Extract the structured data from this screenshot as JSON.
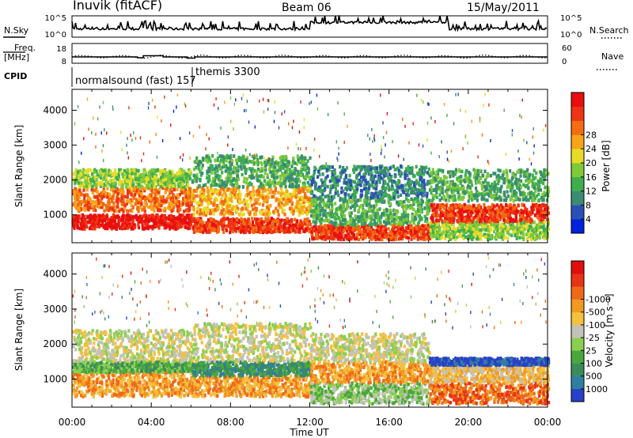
{
  "header": {
    "station": "Inuvik (fitACF)",
    "beam": "Beam 06",
    "date": "15/May/2011"
  },
  "side_labels": {
    "nsky": "N.Sky",
    "nsearch": "N.Search",
    "freq_line1": "Freq.",
    "freq_line2": "[MHz]",
    "cpid": "CPID",
    "nave": "Nave"
  },
  "chart_data": [
    {
      "type": "line",
      "name": "noise",
      "left_axis": {
        "ticks": [
          "10^5",
          "10^0"
        ]
      },
      "right_axis": {
        "ticks": [
          "10^5",
          "10^0"
        ]
      },
      "series": [
        {
          "name": "N.Sky",
          "style": "solid black, dense high variability"
        },
        {
          "name": "N.Search",
          "style": "dotted"
        }
      ]
    },
    {
      "type": "line",
      "name": "frequency_nave",
      "left_axis": {
        "ticks": [
          "18",
          "8"
        ]
      },
      "right_axis": {
        "ticks": [
          "60",
          "0"
        ]
      },
      "series": [
        {
          "name": "Freq.",
          "x": [
            0,
            1.5,
            3.3,
            3.6,
            4.6,
            5.8,
            6.2,
            24
          ],
          "values": [
            11.2,
            11.2,
            10.8,
            11.8,
            11.2,
            10.6,
            11.2,
            11.2
          ]
        },
        {
          "name": "Nave",
          "style": "dotted",
          "values_range": [
            16,
            26
          ]
        }
      ]
    },
    {
      "type": "table",
      "name": "cpid",
      "segments": [
        {
          "label": "normalsound (fast) 157",
          "start_hour": 0,
          "end_hour": 6.1
        },
        {
          "label": "themis 3300",
          "start_hour": 6.1,
          "end_hour": 24
        }
      ]
    },
    {
      "type": "heatmap",
      "name": "power",
      "ylabel": "Slant Range [km]",
      "y_ticks": [
        1000,
        2000,
        3000,
        4000
      ],
      "ylim": [
        200,
        4600
      ],
      "colorbar": {
        "label": "Power [dB]",
        "ticks": [
          "4",
          "8",
          "12",
          "16",
          "20",
          "24",
          "28"
        ],
        "colors": [
          "#0022dd",
          "#2a50b8",
          "#3a8c73",
          "#3fae4f",
          "#7fc93a",
          "#e6dc28",
          "#f8a418",
          "#f36d12",
          "#ee3412",
          "#e80f0f"
        ]
      },
      "bands": [
        {
          "t": [
            0,
            6
          ],
          "r": [
            600,
            1000
          ],
          "level": 9
        },
        {
          "t": [
            0,
            6
          ],
          "r": [
            1100,
            1800
          ],
          "level": 7
        },
        {
          "t": [
            0,
            6
          ],
          "r": [
            1800,
            2300
          ],
          "level": 4
        },
        {
          "t": [
            6,
            12
          ],
          "r": [
            500,
            900
          ],
          "level": 8
        },
        {
          "t": [
            6,
            12
          ],
          "r": [
            1000,
            1800
          ],
          "level": 6
        },
        {
          "t": [
            6,
            12
          ],
          "r": [
            1800,
            2700
          ],
          "level": 3
        },
        {
          "t": [
            12,
            18
          ],
          "r": [
            300,
            700
          ],
          "level": 8
        },
        {
          "t": [
            12,
            18
          ],
          "r": [
            700,
            1500
          ],
          "level": 3
        },
        {
          "t": [
            12,
            18
          ],
          "r": [
            1500,
            2400
          ],
          "level": 2
        },
        {
          "t": [
            18,
            24
          ],
          "r": [
            300,
            800
          ],
          "level": 4
        },
        {
          "t": [
            18,
            24
          ],
          "r": [
            800,
            1300
          ],
          "level": 8
        },
        {
          "t": [
            18,
            24
          ],
          "r": [
            1400,
            2300
          ],
          "level": 3
        }
      ]
    },
    {
      "type": "heatmap",
      "name": "velocity",
      "xlabel": "Time UT",
      "ylabel": "Slant Range [km]",
      "x_ticks": [
        "00:00",
        "04:00",
        "08:00",
        "12:00",
        "16:00",
        "20:00",
        "00:00"
      ],
      "y_ticks": [
        1000,
        2000,
        3000,
        4000
      ],
      "ylim": [
        200,
        4600
      ],
      "colorbar": {
        "label": "Velocity [m s⁻¹]",
        "ticks": [
          "1000",
          "500",
          "100",
          "25",
          "-25",
          "-100",
          "-500",
          "-1000"
        ],
        "colors": [
          "#2a40c8",
          "#2f7fa0",
          "#3a8c5b",
          "#4aa83a",
          "#8ccf50",
          "#c2c2b8",
          "#f4c040",
          "#f29a20",
          "#ee6a18",
          "#e83416",
          "#e00e0e"
        ]
      },
      "bands": [
        {
          "t": [
            0,
            6
          ],
          "r": [
            500,
            1200
          ],
          "level": 7
        },
        {
          "t": [
            0,
            6
          ],
          "r": [
            1200,
            1500
          ],
          "level": 3
        },
        {
          "t": [
            0,
            6
          ],
          "r": [
            1500,
            2400
          ],
          "level": 5
        },
        {
          "t": [
            6,
            12
          ],
          "r": [
            500,
            1100
          ],
          "level": 7
        },
        {
          "t": [
            6,
            12
          ],
          "r": [
            1100,
            1500
          ],
          "level": 2
        },
        {
          "t": [
            6,
            12
          ],
          "r": [
            1500,
            2600
          ],
          "level": 5
        },
        {
          "t": [
            12,
            18
          ],
          "r": [
            300,
            900
          ],
          "level": 4
        },
        {
          "t": [
            12,
            18
          ],
          "r": [
            900,
            1500
          ],
          "level": 7
        },
        {
          "t": [
            12,
            18
          ],
          "r": [
            1500,
            2300
          ],
          "level": 5
        },
        {
          "t": [
            18,
            24
          ],
          "r": [
            300,
            900
          ],
          "level": 8
        },
        {
          "t": [
            18,
            24
          ],
          "r": [
            900,
            1400
          ],
          "level": 6
        },
        {
          "t": [
            18,
            24
          ],
          "r": [
            1400,
            1600
          ],
          "level": 0
        }
      ]
    }
  ]
}
